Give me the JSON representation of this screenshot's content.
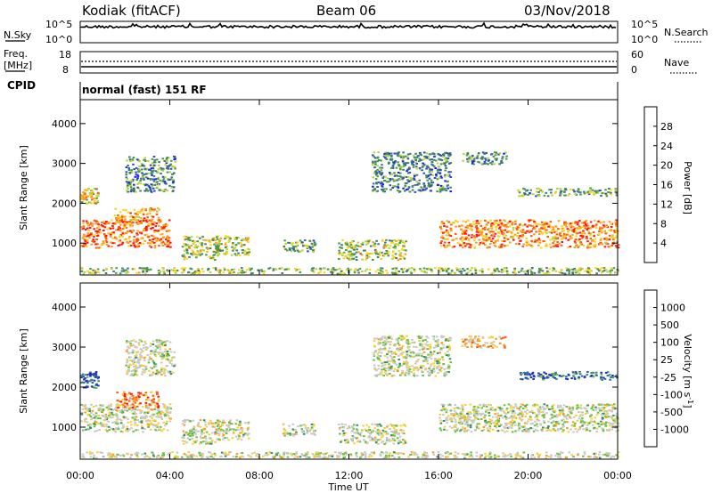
{
  "header": {
    "station": "Kodiak (fitACF)",
    "beam": "Beam 06",
    "date": "03/Nov/2018"
  },
  "top_panels": {
    "nsky_label": "N.Sky",
    "nsky_ticks": [
      "10^5",
      "10^0"
    ],
    "nsearch_label": "N.Search",
    "nsearch_ticks": [
      "10^5",
      "10^0"
    ],
    "freq_label": "Freq.",
    "freq_unit": "[MHz]",
    "freq_ticks": [
      "18",
      "8"
    ],
    "nave_label": "Nave",
    "nave_ticks": [
      "60",
      "0"
    ],
    "cpid_label": "CPID",
    "cpid_text": "normal (fast) 151 RF"
  },
  "colors": {
    "power": [
      "#1a1aff",
      "#2b4fb8",
      "#3d7a78",
      "#4a9a4a",
      "#b8d23c",
      "#ffd21e",
      "#ff9a1e",
      "#ff5a14",
      "#ff1414"
    ],
    "velocity": [
      "#2030c0",
      "#2a6ab0",
      "#3a8a70",
      "#6ac040",
      "#c8c8c8",
      "#c8c8c8",
      "#f5d23c",
      "#ff9a1e",
      "#ff5a14",
      "#ff1010"
    ]
  },
  "chart_data": [
    {
      "type": "heatmap",
      "name": "power",
      "ylabel": "Slant Range [km]",
      "yticks": [
        "1000",
        "2000",
        "3000",
        "4000"
      ],
      "ylim": [
        200,
        4600
      ],
      "xlabel": "Time UT",
      "xticks": [
        "00:00",
        "04:00",
        "08:00",
        "12:00",
        "16:00",
        "20:00",
        "00:00"
      ],
      "xlim_hours": [
        0,
        24
      ],
      "colorbar_label": "Power [dB]",
      "colorbar_ticks": [
        "4",
        "8",
        "12",
        "16",
        "20",
        "24",
        "28"
      ],
      "colorbar_range": [
        0,
        32
      ],
      "echo_bands": [
        {
          "t0": 0.0,
          "t1": 4.0,
          "r0": 900,
          "r1": 1600,
          "level": 0.8
        },
        {
          "t0": 0.0,
          "t1": 0.8,
          "r0": 2000,
          "r1": 2400,
          "level": 0.6
        },
        {
          "t0": 1.5,
          "t1": 3.5,
          "r0": 1500,
          "r1": 1900,
          "level": 0.7
        },
        {
          "t0": 2.0,
          "t1": 4.2,
          "r0": 2300,
          "r1": 3200,
          "level": 0.3
        },
        {
          "t0": 4.5,
          "t1": 6.2,
          "r0": 600,
          "r1": 1200,
          "level": 0.5
        },
        {
          "t0": 6.0,
          "t1": 7.5,
          "r0": 700,
          "r1": 1200,
          "level": 0.5
        },
        {
          "t0": 9.0,
          "t1": 10.5,
          "r0": 800,
          "r1": 1100,
          "level": 0.4
        },
        {
          "t0": 11.5,
          "t1": 14.5,
          "r0": 600,
          "r1": 1100,
          "level": 0.5
        },
        {
          "t0": 13.0,
          "t1": 16.5,
          "r0": 2300,
          "r1": 3300,
          "level": 0.3
        },
        {
          "t0": 16.0,
          "t1": 24.0,
          "r0": 900,
          "r1": 1600,
          "level": 0.75
        },
        {
          "t0": 19.5,
          "t1": 24.0,
          "r0": 2200,
          "r1": 2400,
          "level": 0.4
        },
        {
          "t0": 17.0,
          "t1": 19.0,
          "r0": 3000,
          "r1": 3300,
          "level": 0.3
        },
        {
          "t0": 0.0,
          "t1": 24.0,
          "r0": 250,
          "r1": 400,
          "level": 0.45
        }
      ]
    },
    {
      "type": "heatmap",
      "name": "velocity",
      "ylabel": "Slant Range [km]",
      "yticks": [
        "1000",
        "2000",
        "3000",
        "4000"
      ],
      "ylim": [
        200,
        4600
      ],
      "xlabel": "Time UT",
      "xticks": [
        "00:00",
        "04:00",
        "08:00",
        "12:00",
        "16:00",
        "20:00",
        "00:00"
      ],
      "xlim_hours": [
        0,
        24
      ],
      "colorbar_label": "Velocity [m s^-1]",
      "colorbar_ticks": [
        "1000",
        "500",
        "100",
        "25",
        "-25",
        "-100",
        "-500",
        "-1000"
      ],
      "echo_bands": [
        {
          "t0": 0.0,
          "t1": 4.0,
          "r0": 900,
          "r1": 1600,
          "level": 0.5
        },
        {
          "t0": 0.0,
          "t1": 0.8,
          "r0": 2000,
          "r1": 2400,
          "level": 0.1
        },
        {
          "t0": 1.5,
          "t1": 3.5,
          "r0": 1500,
          "r1": 1900,
          "level": 0.8
        },
        {
          "t0": 2.0,
          "t1": 4.2,
          "r0": 2300,
          "r1": 3200,
          "level": 0.5
        },
        {
          "t0": 4.5,
          "t1": 6.2,
          "r0": 600,
          "r1": 1200,
          "level": 0.5
        },
        {
          "t0": 6.0,
          "t1": 7.5,
          "r0": 700,
          "r1": 1200,
          "level": 0.5
        },
        {
          "t0": 9.0,
          "t1": 10.5,
          "r0": 800,
          "r1": 1100,
          "level": 0.5
        },
        {
          "t0": 11.5,
          "t1": 14.5,
          "r0": 600,
          "r1": 1100,
          "level": 0.5
        },
        {
          "t0": 13.0,
          "t1": 16.5,
          "r0": 2300,
          "r1": 3300,
          "level": 0.5
        },
        {
          "t0": 16.0,
          "t1": 24.0,
          "r0": 900,
          "r1": 1600,
          "level": 0.5
        },
        {
          "t0": 19.5,
          "t1": 24.0,
          "r0": 2200,
          "r1": 2400,
          "level": 0.15
        },
        {
          "t0": 17.0,
          "t1": 19.0,
          "r0": 3000,
          "r1": 3300,
          "level": 0.7
        },
        {
          "t0": 0.0,
          "t1": 24.0,
          "r0": 250,
          "r1": 400,
          "level": 0.5
        }
      ]
    }
  ]
}
